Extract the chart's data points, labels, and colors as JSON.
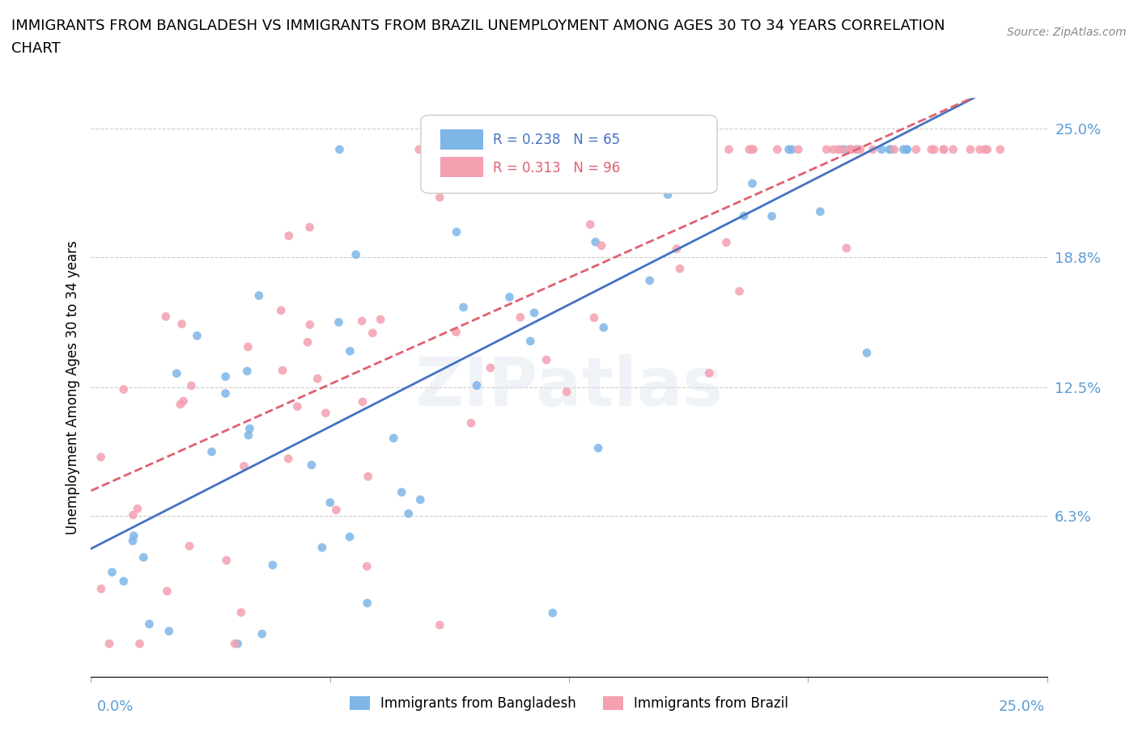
{
  "title_line1": "IMMIGRANTS FROM BANGLADESH VS IMMIGRANTS FROM BRAZIL UNEMPLOYMENT AMONG AGES 30 TO 34 YEARS CORRELATION",
  "title_line2": "CHART",
  "source": "Source: ZipAtlas.com",
  "xlim": [
    0.0,
    0.25
  ],
  "ylim": [
    -0.015,
    0.265
  ],
  "R_bangladesh": 0.238,
  "N_bangladesh": 65,
  "R_brazil": 0.313,
  "N_brazil": 96,
  "color_bangladesh": "#7EB6E8",
  "color_brazil": "#F4A0B0",
  "trendline_color_bangladesh": "#4472C4",
  "trendline_color_brazil": "#E06070",
  "legend_label_bangladesh": "Immigrants from Bangladesh",
  "legend_label_brazil": "Immigrants from Brazil",
  "watermark": "ZIPatlas",
  "ylabel": "Unemployment Among Ages 30 to 34 years",
  "ytick_vals": [
    0.0,
    0.063,
    0.125,
    0.188,
    0.25
  ],
  "ytick_labels": [
    "",
    "6.3%",
    "12.5%",
    "18.8%",
    "25.0%"
  ],
  "axis_color": "#5B9BD5",
  "grid_color": "#CCCCCC",
  "title_fontsize": 13,
  "axis_label_fontsize": 13,
  "legend_fontsize": 12,
  "source_fontsize": 10
}
